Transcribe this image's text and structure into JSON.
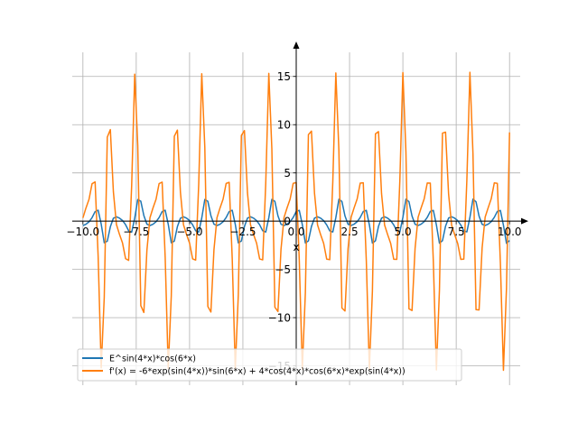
{
  "chart_data": {
    "type": "line",
    "xlabel": "x",
    "ylabel": "",
    "xlim": [
      -10.5,
      10.5
    ],
    "ylim": [
      -17,
      17.5
    ],
    "x_ticks": [
      -10.0,
      -7.5,
      -5.0,
      -2.5,
      0.0,
      2.5,
      5.0,
      7.5,
      10.0
    ],
    "x_tick_labels": [
      "−10.0",
      "−7.5",
      "−5.0",
      "−2.5",
      "0.0",
      "2.5",
      "5.0",
      "7.5",
      "10.0"
    ],
    "y_ticks": [
      -15,
      -10,
      -5,
      0,
      5,
      10,
      15
    ],
    "y_tick_labels": [
      "−15",
      "−10",
      "−5",
      "0",
      "5",
      "10",
      "15"
    ],
    "grid": true,
    "legend_position": "lower-left",
    "series": [
      {
        "name": "E^sin(4*x)*cos(6*x)",
        "color": "#1f77b4",
        "function": "exp(sin(4x))*cos(6x)",
        "x_range": [
          -10,
          10
        ],
        "samples": 141
      },
      {
        "name": "f'(x) = -6*exp(sin(4*x))*sin(6*x) + 4*cos(4*x)*cos(6*x)*exp(sin(4*x))",
        "color": "#ff7f0e",
        "function": "-6*exp(sin(4x))*sin(6x) + 4*cos(4x)*cos(6x)*exp(sin(4x))",
        "x_range": [
          -10,
          10
        ],
        "samples": 141
      }
    ]
  }
}
